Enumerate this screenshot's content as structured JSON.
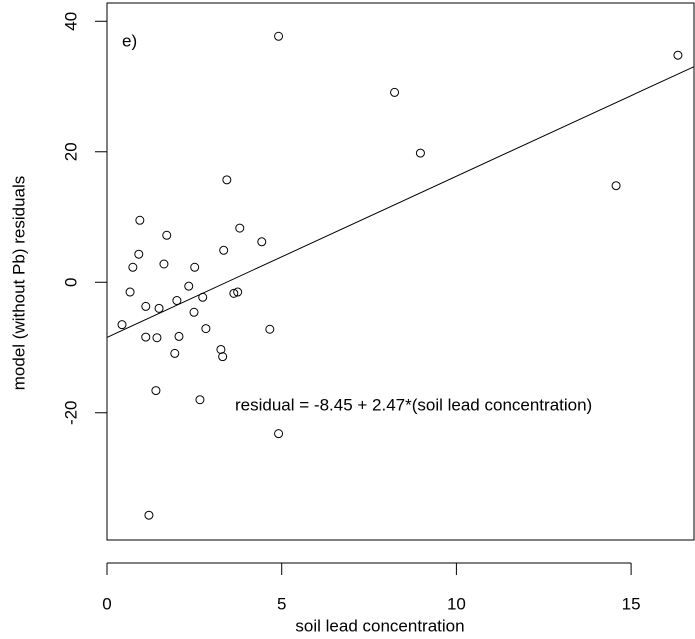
{
  "chart_data": {
    "type": "scatter",
    "panel_label": "e)",
    "x_label": "soil lead concentration",
    "y_label": "model (without Pb) residuals",
    "annotation": "residual = -8.45 + 2.47*(soil lead concentration)",
    "line": {
      "intercept": -8.45,
      "slope": 2.47
    },
    "xlim": [
      0,
      16.8
    ],
    "ylim": [
      -39.5,
      42.8
    ],
    "xticks": [
      0,
      5,
      10,
      15
    ],
    "yticks": [
      -20,
      0,
      20,
      40
    ],
    "x": [
      0.43,
      0.66,
      0.74,
      0.91,
      0.94,
      1.11,
      1.11,
      1.2,
      1.4,
      1.43,
      1.49,
      1.63,
      1.71,
      1.94,
      2.0,
      2.06,
      2.34,
      2.49,
      2.51,
      2.66,
      2.74,
      2.83,
      3.26,
      3.31,
      3.34,
      3.43,
      3.63,
      3.74,
      3.8,
      4.43,
      4.66,
      4.91,
      4.91,
      8.23,
      8.97,
      14.57,
      16.34
    ],
    "values": [
      -6.5,
      -1.5,
      2.3,
      4.3,
      9.5,
      -3.7,
      -8.4,
      -35.7,
      -16.6,
      -8.5,
      -4.0,
      2.8,
      7.2,
      -10.9,
      -2.8,
      -8.3,
      -0.6,
      -4.6,
      2.3,
      -18.0,
      -2.3,
      -7.1,
      -10.3,
      -11.4,
      4.9,
      15.7,
      -1.7,
      -1.5,
      8.3,
      6.2,
      -7.2,
      37.7,
      -23.2,
      29.1,
      19.8,
      14.8,
      34.8
    ]
  }
}
